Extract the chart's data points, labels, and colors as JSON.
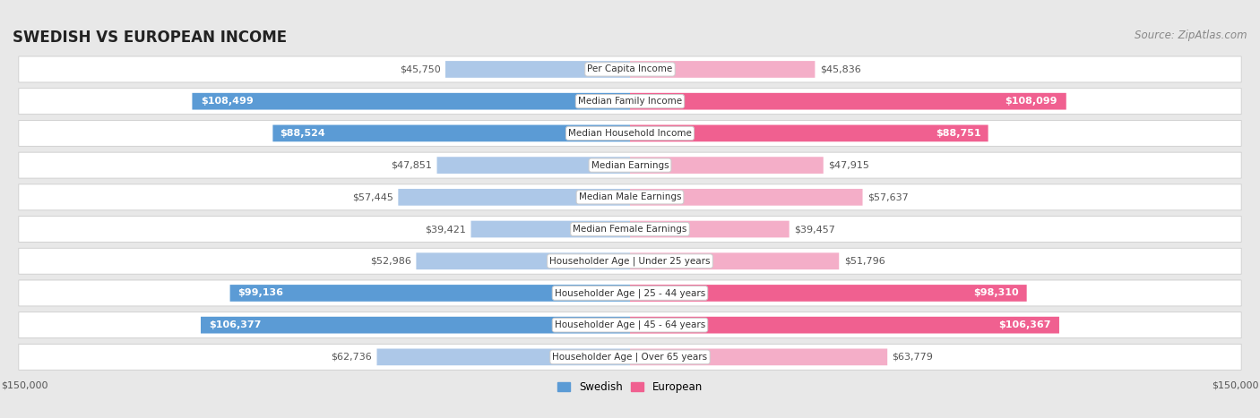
{
  "title": "SWEDISH VS EUROPEAN INCOME",
  "source": "Source: ZipAtlas.com",
  "categories": [
    "Per Capita Income",
    "Median Family Income",
    "Median Household Income",
    "Median Earnings",
    "Median Male Earnings",
    "Median Female Earnings",
    "Householder Age | Under 25 years",
    "Householder Age | 25 - 44 years",
    "Householder Age | 45 - 64 years",
    "Householder Age | Over 65 years"
  ],
  "swedish_values": [
    45750,
    108499,
    88524,
    47851,
    57445,
    39421,
    52986,
    99136,
    106377,
    62736
  ],
  "european_values": [
    45836,
    108099,
    88751,
    47915,
    57637,
    39457,
    51796,
    98310,
    106367,
    63779
  ],
  "swedish_labels": [
    "$45,750",
    "$108,499",
    "$88,524",
    "$47,851",
    "$57,445",
    "$39,421",
    "$52,986",
    "$99,136",
    "$106,377",
    "$62,736"
  ],
  "european_labels": [
    "$45,836",
    "$108,099",
    "$88,751",
    "$47,915",
    "$57,637",
    "$39,457",
    "$51,796",
    "$98,310",
    "$106,367",
    "$63,779"
  ],
  "max_value": 150000,
  "swedish_color_large": "#5b9bd5",
  "swedish_color_small": "#adc8e8",
  "european_color_large": "#f06090",
  "european_color_small": "#f4aec8",
  "background_color": "#e8e8e8",
  "row_color": "#f5f5f5",
  "label_threshold": 70000,
  "title_fontsize": 12,
  "source_fontsize": 8.5,
  "bar_label_fontsize": 8,
  "cat_label_fontsize": 7.5,
  "axis_label_fontsize": 8
}
